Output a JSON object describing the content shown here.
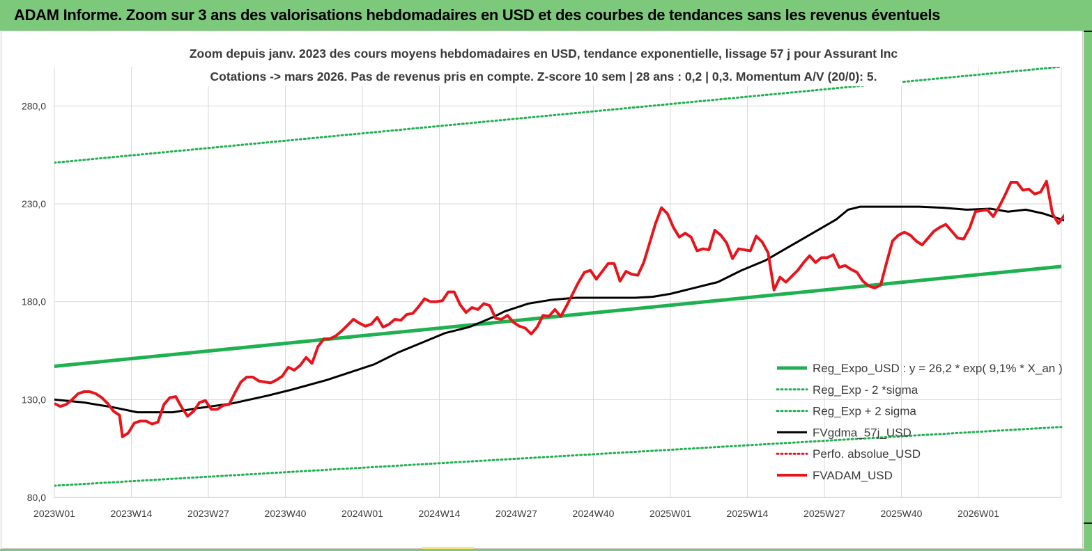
{
  "banner": {
    "title": "ADAM Informe. Zoom sur 3 ans des valorisations hebdomadaires en USD et des courbes de tendances sans les revenus éventuels"
  },
  "colors": {
    "banner_bg": "#7dc97b",
    "trend_green": "#1fb14f",
    "fvadam_red": "#e8141b",
    "fvgdma_black": "#000000",
    "perfo_red": "#e8141b",
    "grid": "#d9d9d9"
  },
  "chart_data": {
    "type": "line",
    "title": "Zoom depuis janv. 2023 des cours moyens hebdomadaires en USD, tendance exponentielle, lissage 57 j pour Assurant Inc",
    "subtitle": "Cotations -> mars 2026. Pas de revenus pris en compte. Z-score 10 sem  | 28 ans : 0,2 | 0,3. Momentum A/V (20/0): 5.",
    "xlabel": "",
    "ylabel": "",
    "ylim": [
      80,
      300
    ],
    "yticks": [
      "80,0",
      "130,0",
      "180,0",
      "230,0",
      "280,0"
    ],
    "ytick_values": [
      80,
      130,
      180,
      230,
      280
    ],
    "xticks": [
      "2023W01",
      "2023W14",
      "2023W27",
      "2023W40",
      "2024W01",
      "2024W14",
      "2024W27",
      "2024W40",
      "2025W01",
      "2025W14",
      "2025W27",
      "2025W40",
      "2026W01"
    ],
    "xtick_index": [
      0,
      13,
      26,
      39,
      52,
      65,
      78,
      91,
      104,
      117,
      130,
      143,
      156
    ],
    "n_weeks": 171,
    "grid": true,
    "legend_position": "right, lower half",
    "series": [
      {
        "name": "Reg_Expo_USD : y = 26,2 * exp( 9,1% *  X_an )",
        "style": "solid-thick",
        "color": "#1fb14f",
        "points": [
          [
            0,
            147
          ],
          [
            170,
            198
          ]
        ]
      },
      {
        "name": "Reg_Exp - 2 *sigma",
        "style": "dotted",
        "color": "#1fb14f",
        "points": [
          [
            0,
            86
          ],
          [
            170,
            116
          ]
        ]
      },
      {
        "name": "Reg_Exp + 2 sigma",
        "style": "dotted",
        "color": "#1fb14f",
        "points": [
          [
            0,
            251
          ],
          [
            170,
            300
          ]
        ]
      },
      {
        "name": "FVgdma_57j_USD",
        "style": "solid",
        "color": "#000000",
        "points": [
          [
            0,
            130
          ],
          [
            5,
            128.5
          ],
          [
            10,
            126
          ],
          [
            14,
            123.5
          ],
          [
            20,
            123.5
          ],
          [
            24,
            125.5
          ],
          [
            30,
            128
          ],
          [
            36,
            132
          ],
          [
            40,
            135
          ],
          [
            46,
            140
          ],
          [
            50,
            144
          ],
          [
            54,
            148
          ],
          [
            58,
            154
          ],
          [
            62,
            159
          ],
          [
            66,
            164
          ],
          [
            70,
            167
          ],
          [
            74,
            172
          ],
          [
            76,
            175
          ],
          [
            80,
            179
          ],
          [
            84,
            181
          ],
          [
            88,
            182
          ],
          [
            92,
            182
          ],
          [
            96,
            182
          ],
          [
            98,
            182
          ],
          [
            101,
            182.5
          ],
          [
            104,
            184
          ],
          [
            108,
            187
          ],
          [
            112,
            190
          ],
          [
            116,
            196
          ],
          [
            120,
            201
          ],
          [
            124,
            208
          ],
          [
            128,
            215
          ],
          [
            132,
            222
          ],
          [
            134,
            227
          ],
          [
            136,
            228.5
          ],
          [
            140,
            228.5
          ],
          [
            146,
            228.5
          ],
          [
            150,
            228
          ],
          [
            154,
            227
          ],
          [
            158,
            227.5
          ],
          [
            161,
            226
          ],
          [
            164,
            227
          ],
          [
            167,
            225
          ],
          [
            170,
            222
          ],
          [
            176,
            216
          ],
          [
            180,
            218
          ],
          [
            184,
            218.5
          ],
          [
            190,
            218.5
          ],
          [
            196,
            218
          ],
          [
            200,
            218
          ],
          [
            206,
            218.5
          ],
          [
            210,
            218.5
          ],
          [
            214,
            218
          ],
          [
            218,
            218.5
          ],
          [
            222,
            218.5
          ],
          [
            226,
            218
          ],
          [
            230,
            218
          ],
          [
            234,
            218
          ],
          [
            238,
            219
          ],
          [
            240,
            221
          ]
        ]
      },
      {
        "name": "Perfo. absolue_USD",
        "style": "dotted",
        "color": "#e8141b",
        "points": []
      },
      {
        "name": "FVADAM_USD",
        "style": "solid-thick",
        "color": "#e8141b",
        "points": [
          [
            0,
            128
          ],
          [
            1,
            126.5
          ],
          [
            2,
            127.5
          ],
          [
            3,
            130
          ],
          [
            4,
            133
          ],
          [
            5,
            134
          ],
          [
            6,
            134
          ],
          [
            7,
            133
          ],
          [
            8,
            131
          ],
          [
            9,
            128
          ],
          [
            10,
            124
          ],
          [
            11,
            122
          ],
          [
            11.5,
            111
          ],
          [
            12.5,
            113
          ],
          [
            13.5,
            118
          ],
          [
            14.5,
            119
          ],
          [
            15.5,
            119
          ],
          [
            16.5,
            117.5
          ],
          [
            17.5,
            118.5
          ],
          [
            18.5,
            127.5
          ],
          [
            19.5,
            131
          ],
          [
            20.5,
            131.5
          ],
          [
            21.5,
            126
          ],
          [
            22.5,
            121.5
          ],
          [
            23.5,
            124
          ],
          [
            24.5,
            128.5
          ],
          [
            25.5,
            129.5
          ],
          [
            26.5,
            125
          ],
          [
            27.5,
            125
          ],
          [
            28.5,
            127
          ],
          [
            29.5,
            127.5
          ],
          [
            30.5,
            133.5
          ],
          [
            31.5,
            139
          ],
          [
            32.5,
            141.5
          ],
          [
            33.5,
            141.5
          ],
          [
            34.5,
            139.5
          ],
          [
            35.5,
            139
          ],
          [
            36.5,
            138.5
          ],
          [
            37.5,
            140
          ],
          [
            38.5,
            142
          ],
          [
            39.5,
            146.5
          ],
          [
            40.5,
            145
          ],
          [
            41.5,
            147.5
          ],
          [
            42.5,
            151.5
          ],
          [
            43.5,
            148.5
          ],
          [
            44.5,
            157
          ],
          [
            45.5,
            161
          ],
          [
            46.5,
            161
          ],
          [
            47.5,
            162.5
          ],
          [
            48.5,
            165
          ],
          [
            49.5,
            168
          ],
          [
            50.5,
            171
          ],
          [
            51.5,
            169
          ],
          [
            52.5,
            167.5
          ],
          [
            53.5,
            168.5
          ],
          [
            54.5,
            172
          ],
          [
            55.5,
            167
          ],
          [
            56.5,
            168.5
          ],
          [
            57.5,
            171
          ],
          [
            58.5,
            170.5
          ],
          [
            59.5,
            173.5
          ],
          [
            60.5,
            174
          ],
          [
            61.5,
            177.5
          ],
          [
            62.5,
            181.5
          ],
          [
            63.5,
            180
          ],
          [
            64.5,
            180
          ],
          [
            65.5,
            180.5
          ],
          [
            66.5,
            185
          ],
          [
            67.5,
            185
          ],
          [
            68.5,
            178.5
          ],
          [
            69.5,
            174.5
          ],
          [
            70.5,
            177
          ],
          [
            71.5,
            176
          ],
          [
            72.5,
            179
          ],
          [
            73.5,
            178
          ],
          [
            74.5,
            171.5
          ],
          [
            75.5,
            171
          ],
          [
            76.5,
            173
          ],
          [
            77.5,
            169.5
          ],
          [
            78.5,
            167.5
          ],
          [
            79.5,
            166.5
          ],
          [
            80.5,
            163.5
          ],
          [
            81.5,
            167
          ],
          [
            82.5,
            173
          ],
          [
            83.5,
            172.5
          ],
          [
            84.5,
            176
          ],
          [
            85.5,
            172.5
          ],
          [
            86.5,
            178
          ],
          [
            87.5,
            184
          ],
          [
            88.5,
            190
          ],
          [
            89.5,
            195
          ],
          [
            90.5,
            196
          ],
          [
            91.5,
            191.5
          ],
          [
            92.5,
            195.5
          ],
          [
            93.5,
            199.5
          ],
          [
            94.5,
            199.5
          ],
          [
            95.5,
            190.5
          ],
          [
            96.5,
            195.5
          ],
          [
            97.5,
            194
          ],
          [
            98.5,
            193.5
          ],
          [
            99.5,
            200
          ],
          [
            100.5,
            210
          ],
          [
            101.5,
            220
          ],
          [
            102.5,
            228
          ],
          [
            103.5,
            225
          ],
          [
            104.5,
            218
          ],
          [
            105.5,
            213
          ],
          [
            106.5,
            215
          ],
          [
            107.5,
            213
          ],
          [
            108.5,
            206
          ],
          [
            109.5,
            207
          ],
          [
            110.5,
            206.5
          ],
          [
            111.5,
            216.5
          ],
          [
            112.5,
            214
          ],
          [
            113.5,
            210
          ],
          [
            114.5,
            202
          ],
          [
            115.5,
            207
          ],
          [
            116.5,
            206.5
          ],
          [
            117.5,
            206
          ],
          [
            118.5,
            213.5
          ],
          [
            119.5,
            210.5
          ],
          [
            120.5,
            205
          ],
          [
            121.5,
            186
          ],
          [
            122.5,
            192.5
          ],
          [
            123.5,
            190
          ],
          [
            124.5,
            193
          ],
          [
            125.5,
            196
          ],
          [
            126.5,
            200
          ],
          [
            127.5,
            203.5
          ],
          [
            128.5,
            200
          ],
          [
            129.5,
            202.5
          ],
          [
            130.5,
            202.5
          ],
          [
            131.5,
            204
          ],
          [
            132.5,
            197.5
          ],
          [
            133.5,
            198.5
          ],
          [
            134.5,
            196.5
          ],
          [
            135.5,
            195
          ],
          [
            136.5,
            190.5
          ],
          [
            137.5,
            188
          ],
          [
            138.5,
            187
          ],
          [
            139.5,
            188.5
          ],
          [
            140.5,
            200
          ],
          [
            141.5,
            211
          ],
          [
            142.5,
            214
          ],
          [
            143.5,
            215.5
          ],
          [
            144.5,
            214
          ],
          [
            145.5,
            211
          ],
          [
            146.5,
            209
          ],
          [
            147.5,
            212.5
          ],
          [
            148.5,
            216
          ],
          [
            149.5,
            218
          ],
          [
            150.5,
            219.5
          ],
          [
            151.5,
            216
          ],
          [
            152.5,
            212.5
          ],
          [
            153.5,
            212
          ],
          [
            154.5,
            217.5
          ],
          [
            155.5,
            226
          ],
          [
            156.5,
            226.5
          ],
          [
            157.5,
            227
          ],
          [
            158.5,
            223.5
          ],
          [
            159.5,
            228.5
          ],
          [
            160.5,
            234.5
          ],
          [
            161.5,
            241
          ],
          [
            162.5,
            241
          ],
          [
            163.5,
            237
          ],
          [
            164.5,
            237.5
          ],
          [
            165.5,
            235
          ],
          [
            166.5,
            236
          ],
          [
            167.5,
            241.5
          ],
          [
            168.5,
            225
          ],
          [
            169.5,
            220
          ],
          [
            170.5,
            224
          ],
          [
            171.5,
            228
          ]
        ]
      }
    ]
  }
}
